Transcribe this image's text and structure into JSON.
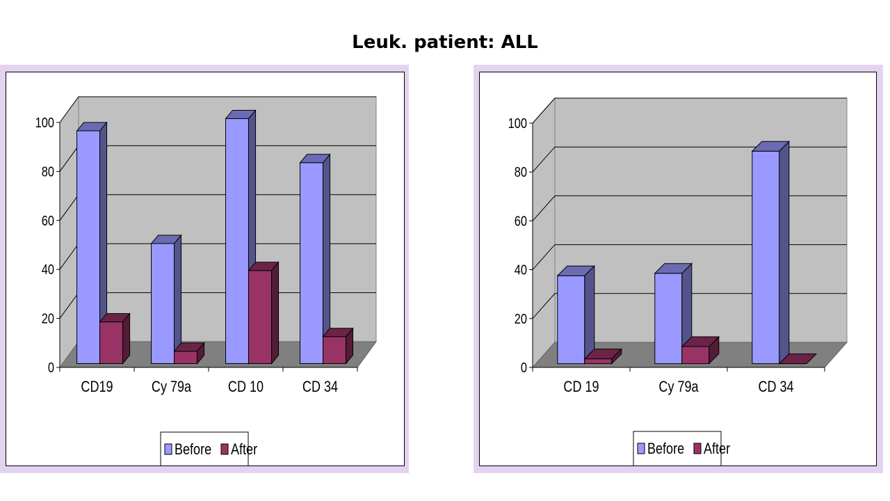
{
  "page_title": "Leuk. patient: ALL",
  "colors": {
    "before": "#9999ff",
    "after": "#993366",
    "wall": "#c0c0c0",
    "floor": "#808080"
  },
  "chart_data": [
    {
      "type": "bar",
      "categories": [
        "CD19",
        "Cy 79a",
        "CD 10",
        "CD 34"
      ],
      "series": [
        {
          "name": "Before",
          "values": [
            95,
            49,
            100,
            82
          ]
        },
        {
          "name": "After",
          "values": [
            17,
            5,
            38,
            11
          ]
        }
      ],
      "ylim": [
        0,
        100
      ],
      "yticks": [
        0,
        20,
        40,
        60,
        80,
        100
      ],
      "legend": "bottom",
      "grid": true
    },
    {
      "type": "bar",
      "categories": [
        "CD 19",
        "Cy 79a",
        "CD 34"
      ],
      "series": [
        {
          "name": "Before",
          "values": [
            36,
            37,
            87
          ]
        },
        {
          "name": "After",
          "values": [
            2,
            7,
            0
          ]
        }
      ],
      "ylim": [
        0,
        100
      ],
      "yticks": [
        0,
        20,
        40,
        60,
        80,
        100
      ],
      "legend": "bottom",
      "grid": true
    }
  ]
}
